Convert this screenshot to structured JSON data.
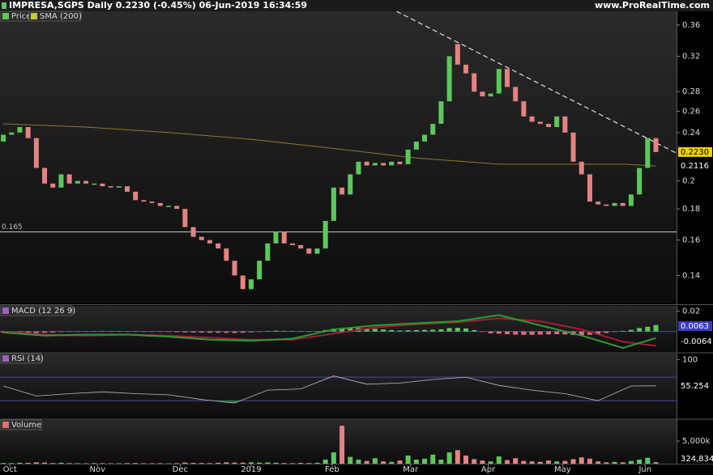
{
  "header": {
    "title": "IMPRESA,SGPS Daily 0.2230 (-0.45%) 06-Jun-2019 16:34:59",
    "website": "www.ProRealTime.com"
  },
  "chart_data": [
    {
      "type": "candlestick",
      "series": [
        {
          "name": "Price",
          "up_color": "#5cc85c",
          "down_color": "#e58282",
          "open": [
            0.232,
            0.238,
            0.24,
            0.245,
            0.235,
            0.21,
            0.198,
            0.195,
            0.205,
            0.198,
            0.2,
            0.198,
            0.198,
            0.196,
            0.195,
            0.196,
            0.192,
            0.186,
            0.185,
            0.184,
            0.182,
            0.182,
            0.18,
            0.168,
            0.162,
            0.16,
            0.158,
            0.155,
            0.148,
            0.14,
            0.133,
            0.138,
            0.148,
            0.158,
            0.165,
            0.158,
            0.157,
            0.155,
            0.152,
            0.155,
            0.172,
            0.195,
            0.19,
            0.205,
            0.215,
            0.212,
            0.214,
            0.212,
            0.215,
            0.213,
            0.225,
            0.232,
            0.238,
            0.248,
            0.27,
            0.335,
            0.31,
            0.3,
            0.28,
            0.275,
            0.278,
            0.305,
            0.285,
            0.27,
            0.255,
            0.25,
            0.248,
            0.245,
            0.255,
            0.24,
            0.215,
            0.205,
            0.185,
            0.183,
            0.182,
            0.184,
            0.182,
            0.19,
            0.21,
            0.235
          ],
          "close": [
            0.238,
            0.24,
            0.245,
            0.235,
            0.21,
            0.198,
            0.195,
            0.205,
            0.198,
            0.2,
            0.198,
            0.198,
            0.196,
            0.195,
            0.196,
            0.192,
            0.186,
            0.185,
            0.184,
            0.182,
            0.182,
            0.18,
            0.168,
            0.162,
            0.16,
            0.158,
            0.155,
            0.148,
            0.14,
            0.133,
            0.138,
            0.148,
            0.158,
            0.165,
            0.158,
            0.157,
            0.155,
            0.152,
            0.155,
            0.172,
            0.195,
            0.19,
            0.205,
            0.215,
            0.212,
            0.214,
            0.212,
            0.215,
            0.213,
            0.225,
            0.232,
            0.238,
            0.248,
            0.27,
            0.32,
            0.31,
            0.3,
            0.28,
            0.275,
            0.278,
            0.305,
            0.285,
            0.27,
            0.255,
            0.25,
            0.248,
            0.245,
            0.255,
            0.24,
            0.215,
            0.205,
            0.185,
            0.183,
            0.182,
            0.184,
            0.182,
            0.19,
            0.21,
            0.235,
            0.223
          ]
        },
        {
          "name": "SMA (200)",
          "color": "#8c7a2c",
          "x": [
            0,
            10,
            20,
            30,
            40,
            50,
            60,
            70,
            75,
            79
          ],
          "values": [
            0.248,
            0.245,
            0.24,
            0.234,
            0.226,
            0.218,
            0.213,
            0.213,
            0.213,
            0.2116
          ]
        }
      ],
      "last_label": {
        "value": 0.223,
        "label": "0.2230"
      },
      "level": {
        "value": 0.165,
        "label": "0.165"
      },
      "trendline": {
        "x": [
          47.6,
          81.5
        ],
        "y": [
          0.379,
          0.222
        ]
      },
      "log_scale": true,
      "ylim": [
        0.126,
        0.379
      ],
      "yticks": [
        0.36,
        0.32,
        0.28,
        0.26,
        0.24,
        0.2,
        0.18,
        0.16,
        0.14
      ],
      "xlim": [
        -0.4,
        81.5
      ],
      "xticks": [
        {
          "value": 0.8,
          "label": "Oct"
        },
        {
          "value": 11.4,
          "label": "Nov"
        },
        {
          "value": 21.4,
          "label": "Dec"
        },
        {
          "value": 30,
          "label": "2019"
        },
        {
          "value": 39.8,
          "label": "Feb"
        },
        {
          "value": 49.3,
          "label": "Mar"
        },
        {
          "value": 58.7,
          "label": "Apr"
        },
        {
          "value": 67.7,
          "label": "May"
        },
        {
          "value": 77.7,
          "label": "Jun"
        }
      ]
    },
    {
      "type": "macd",
      "title": "MACD (12 26 9)",
      "histogram": [
        -0.001,
        -0.0012,
        -0.0013,
        -0.0012,
        -0.0015,
        -0.0012,
        -0.001,
        -0.0005,
        -0.0003,
        -0.0002,
        0.0002,
        0.0003,
        0.0004,
        0.0004,
        0.0003,
        0.0002,
        0.0001,
        0,
        -0.0002,
        -0.0004,
        -0.0005,
        -0.0007,
        -0.0009,
        -0.001,
        -0.0011,
        -0.0012,
        -0.0012,
        -0.0013,
        -0.0014,
        -0.0012,
        -0.0008,
        -0.0002,
        0.0004,
        0.0008,
        0.0006,
        0.0004,
        0.0002,
        0,
        0.0002,
        0.0014,
        0.0028,
        0.0034,
        0.0036,
        0.0034,
        0.003,
        0.0026,
        0.002,
        0.0014,
        0.001,
        0.0012,
        0.0014,
        0.0016,
        0.0018,
        0.0022,
        0.0034,
        0.0036,
        0.003,
        0.0014,
        -0.0004,
        -0.0018,
        -0.0022,
        -0.0026,
        -0.003,
        -0.0032,
        -0.0032,
        -0.003,
        -0.0028,
        -0.0026,
        -0.0028,
        -0.0034,
        -0.0036,
        -0.0032,
        -0.0024,
        -0.0014,
        -0.0004,
        0.0006,
        0.0016,
        0.0034,
        0.0046,
        0.0063
      ],
      "up_color": "#5cc85c",
      "down_color": "#e07070",
      "x": [
        0,
        5,
        10,
        15,
        20,
        25,
        30,
        35,
        40,
        45,
        50,
        55,
        60,
        65,
        70,
        75,
        79
      ],
      "macd": {
        "color": "#2f9a36",
        "values": [
          -0.001,
          -0.004,
          -0.003,
          -0.003,
          -0.005,
          -0.008,
          -0.009,
          -0.007,
          0.002,
          0.006,
          0.008,
          0.01,
          0.016,
          0.006,
          -0.004,
          -0.016,
          -0.0064
        ]
      },
      "signal": {
        "color": "#a02030",
        "values": [
          0,
          -0.003,
          -0.004,
          -0.003,
          -0.004,
          -0.006,
          -0.008,
          -0.008,
          -0.002,
          0.004,
          0.007,
          0.009,
          0.013,
          0.01,
          0.002,
          -0.01,
          -0.014
        ]
      },
      "ylim": [
        -0.02,
        0.025
      ],
      "yticks": [
        0.02
      ]
    },
    {
      "type": "rsi",
      "title": "RSI (14)",
      "x": [
        0,
        4,
        8,
        12,
        16,
        20,
        24,
        28,
        32,
        36,
        40,
        44,
        48,
        52,
        56,
        60,
        64,
        68,
        72,
        76,
        79
      ],
      "values": [
        55,
        38,
        42,
        45,
        42,
        40,
        32,
        26,
        48,
        50,
        72,
        58,
        60,
        66,
        70,
        56,
        48,
        42,
        30,
        55,
        55.254
      ],
      "color": "#bbbbbb",
      "bands": [
        30,
        70
      ],
      "ylim": [
        0,
        110
      ],
      "yticks": [
        100
      ]
    },
    {
      "type": "volume",
      "title": "Volume",
      "values": [
        150000,
        120000,
        200000,
        180000,
        300000,
        250000,
        150000,
        200000,
        120000,
        100000,
        90000,
        110000,
        100000,
        80000,
        90000,
        120000,
        150000,
        100000,
        90000,
        110000,
        80000,
        100000,
        250000,
        180000,
        150000,
        120000,
        200000,
        300000,
        250000,
        220000,
        300000,
        250000,
        280000,
        200000,
        150000,
        120000,
        180000,
        150000,
        200000,
        900000,
        2500000,
        8400000,
        1500000,
        900000,
        600000,
        1200000,
        500000,
        400000,
        700000,
        1800000,
        900000,
        1100000,
        2000000,
        900000,
        2500000,
        3000000,
        1800000,
        1000000,
        700000,
        500000,
        1600000,
        800000,
        1200000,
        600000,
        500000,
        400000,
        700000,
        500000,
        600000,
        1000000,
        1400000,
        1100000,
        500000,
        300000,
        400000,
        300000,
        600000,
        900000,
        1300000,
        324834
      ],
      "last_label": {
        "value": 324834,
        "label": "324,834"
      },
      "ylim": [
        0,
        9500000
      ],
      "yticks": [
        {
          "value": 5000000,
          "label": "5,000k"
        }
      ]
    }
  ]
}
